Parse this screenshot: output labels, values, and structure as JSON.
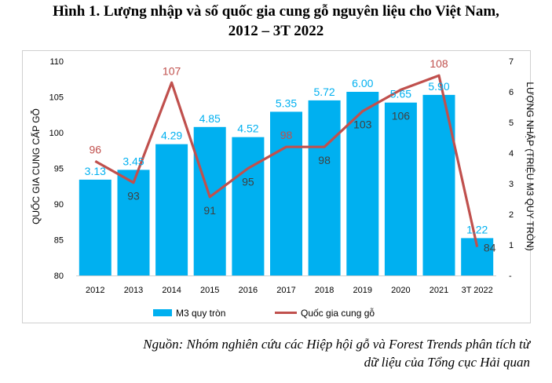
{
  "title": {
    "line1": "Hình 1. Lượng nhập và số quốc gia cung gỗ nguyên liệu cho Việt Nam,",
    "line2": "2012 – 3T 2022"
  },
  "source": {
    "line1": "Nguồn: Nhóm nghiên cứu các Hiệp hội gỗ và Forest Trends phân tích từ",
    "line2": "dữ liệu của Tổng cục Hải quan"
  },
  "colors": {
    "bar": "#00b0f0",
    "line": "#c0504d",
    "bar_label": "#00b0f0",
    "line_label": "#404040",
    "axis_text": "#000000"
  },
  "chart_data": {
    "type": "bar",
    "categories": [
      "2012",
      "2013",
      "2014",
      "2015",
      "2016",
      "2017",
      "2018",
      "2019",
      "2020",
      "2021",
      "3T 2022"
    ],
    "series": [
      {
        "name": "M3 quy tròn",
        "type": "bar",
        "axis": "right",
        "values": [
          3.13,
          3.45,
          4.29,
          4.85,
          4.52,
          5.35,
          5.72,
          6.0,
          5.65,
          5.9,
          1.22
        ],
        "labels": [
          "3.13",
          "3.45",
          "4.29",
          "4.85",
          "4.52",
          "5.35",
          "5.72",
          "6.00",
          "5.65",
          "5.90",
          "1.22"
        ]
      },
      {
        "name": "Quốc gia cung gỗ",
        "type": "line",
        "axis": "left",
        "values": [
          96,
          93,
          107,
          91,
          95,
          98,
          98,
          103,
          106,
          108,
          84
        ],
        "labels": [
          "96",
          "93",
          "107",
          "91",
          "95",
          "98",
          "98",
          "103",
          "106",
          "108",
          "84"
        ]
      }
    ],
    "ylabel": "QUỐC GIA CUNG CẤP GỖ",
    "ylabel_right": "LƯỢNG NHẬP (TRIỆU M3 QUY TRÒN)",
    "ylim": [
      80,
      110
    ],
    "ylim_right": [
      0,
      7
    ],
    "yticks": [
      "80",
      "85",
      "90",
      "95",
      "100",
      "105",
      "110"
    ],
    "yticks_right": [
      "-",
      "1",
      "2",
      "3",
      "4",
      "5",
      "6",
      "7"
    ],
    "grid": false,
    "legend_position": "bottom"
  }
}
